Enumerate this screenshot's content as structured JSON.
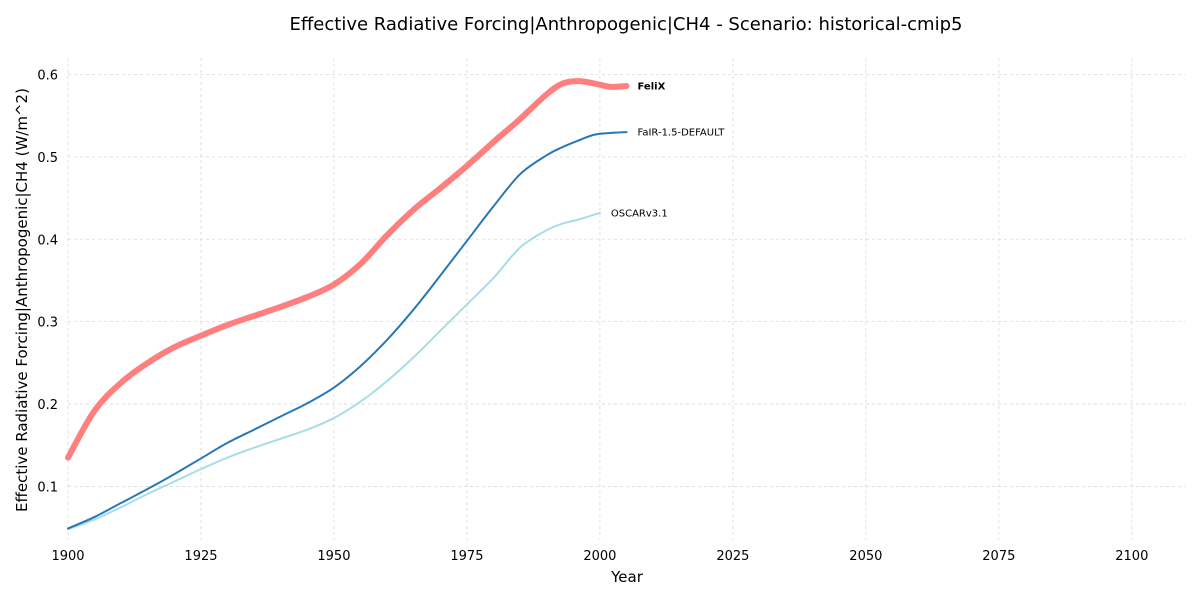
{
  "chart_data": {
    "type": "line",
    "title": "Effective Radiative Forcing|Anthropogenic|CH4 - Scenario: historical-cmip5",
    "xlabel": "Year",
    "ylabel": "Effective Radiative Forcing|Anthropogenic|CH4 (W/m^2)",
    "xlim": [
      1900,
      2110
    ],
    "ylim": [
      0.035,
      0.62
    ],
    "xticks": [
      1900,
      1925,
      1950,
      1975,
      2000,
      2025,
      2050,
      2075,
      2100
    ],
    "yticks": [
      0.1,
      0.2,
      0.3,
      0.4,
      0.5,
      0.6
    ],
    "ytick_labels": [
      "0.1",
      "0.2",
      "0.3",
      "0.4",
      "0.5",
      "0.6"
    ],
    "grid": true,
    "legend": "inline labels at line ends",
    "series": [
      {
        "name": "FeliX",
        "color": "#ff7f7f",
        "width": 6,
        "label_bold": true,
        "x": [
          1900,
          1905,
          1910,
          1915,
          1920,
          1925,
          1930,
          1935,
          1940,
          1945,
          1950,
          1955,
          1960,
          1965,
          1970,
          1975,
          1980,
          1985,
          1990,
          1993,
          1996,
          1999,
          2002,
          2005
        ],
        "y": [
          0.135,
          0.192,
          0.226,
          0.25,
          0.269,
          0.283,
          0.296,
          0.307,
          0.318,
          0.33,
          0.345,
          0.37,
          0.405,
          0.436,
          0.462,
          0.489,
          0.518,
          0.546,
          0.576,
          0.589,
          0.592,
          0.589,
          0.585,
          0.586
        ]
      },
      {
        "name": "FaIR-1.5-DEFAULT",
        "color": "#2878b5",
        "width": 2,
        "label_bold": false,
        "x": [
          1900,
          1905,
          1910,
          1915,
          1920,
          1925,
          1930,
          1935,
          1940,
          1945,
          1950,
          1955,
          1960,
          1965,
          1970,
          1975,
          1980,
          1985,
          1990,
          1993,
          1996,
          1999,
          2002,
          2005
        ],
        "y": [
          0.049,
          0.063,
          0.08,
          0.097,
          0.115,
          0.134,
          0.153,
          0.169,
          0.185,
          0.201,
          0.22,
          0.246,
          0.278,
          0.315,
          0.356,
          0.398,
          0.44,
          0.479,
          0.502,
          0.512,
          0.52,
          0.527,
          0.529,
          0.53
        ]
      },
      {
        "name": "OSCARv3.1",
        "color": "#a8dde8",
        "width": 2,
        "label_bold": false,
        "x": [
          1900,
          1905,
          1910,
          1915,
          1920,
          1925,
          1930,
          1935,
          1940,
          1945,
          1950,
          1955,
          1960,
          1965,
          1970,
          1975,
          1980,
          1985,
          1990,
          1993,
          1996,
          1998,
          2000
        ],
        "y": [
          0.048,
          0.06,
          0.075,
          0.091,
          0.106,
          0.121,
          0.135,
          0.147,
          0.158,
          0.169,
          0.183,
          0.203,
          0.228,
          0.257,
          0.289,
          0.321,
          0.353,
          0.39,
          0.411,
          0.419,
          0.424,
          0.428,
          0.432
        ]
      }
    ]
  }
}
